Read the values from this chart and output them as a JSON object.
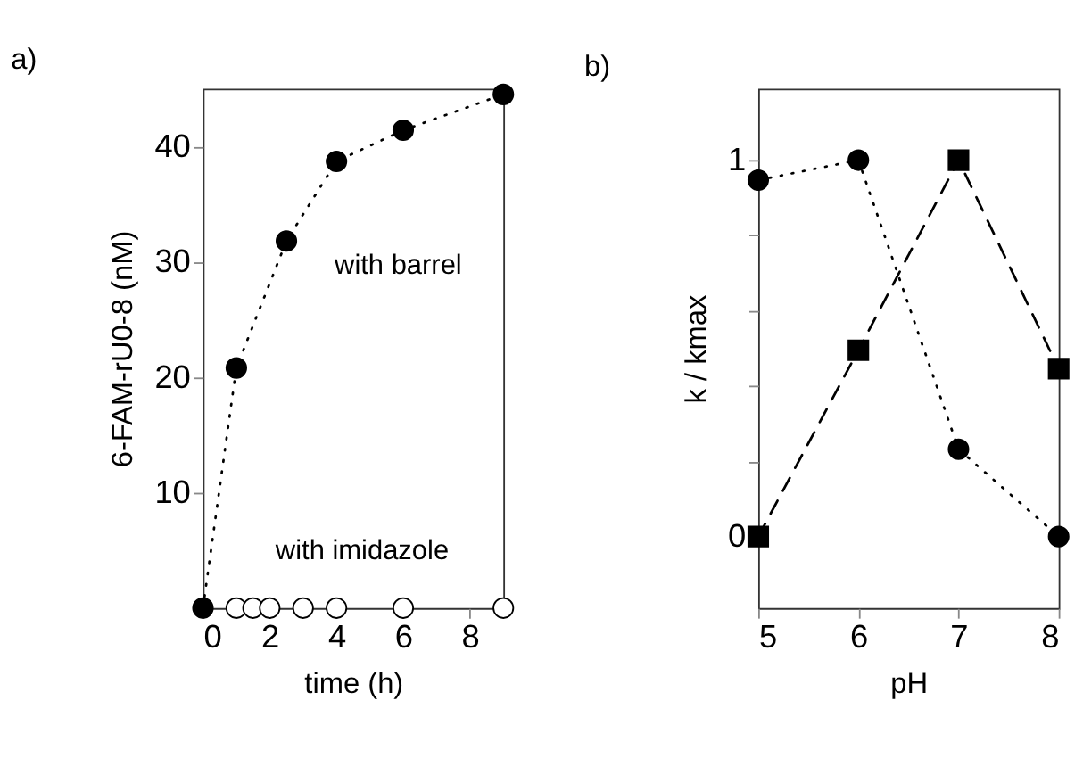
{
  "chart_data": [
    {
      "type": "line",
      "title": "a)",
      "xlabel": "time (h)",
      "ylabel": "6-FAM-rU0-8 (nM)",
      "xlim": [
        0,
        9
      ],
      "ylim": [
        0,
        45
      ],
      "xticks": [
        0,
        2,
        4,
        6,
        8
      ],
      "yticks": [
        10,
        20,
        30,
        40
      ],
      "grid": false,
      "series": [
        {
          "color": "#000000",
          "marker": "circle",
          "line_style": "dotted",
          "x": [
            0,
            1,
            2.5,
            4,
            6,
            9
          ],
          "values": [
            0,
            20.8,
            31.8,
            38.7,
            41.4,
            44.5
          ]
        },
        {
          "type": "scatter",
          "color": "#ffffff",
          "marker": "circle",
          "x": [
            1,
            1.5,
            2,
            3,
            4,
            6,
            9
          ],
          "values": [
            0,
            0,
            0,
            0,
            0,
            0,
            0
          ]
        }
      ],
      "annotations": [
        "with barrel",
        "with imidazole"
      ]
    },
    {
      "type": "line",
      "title": "b)",
      "xlabel": "pH",
      "ylabel": "k / kmax",
      "xlim": [
        5,
        8
      ],
      "ylim": [
        -0.19,
        1.19
      ],
      "xticks": [
        5,
        6,
        7,
        8
      ],
      "yticks": [
        0,
        {
          "value": 0.2,
          "label": null
        },
        {
          "value": 0.4,
          "label": null
        },
        {
          "value": 0.6,
          "label": null
        },
        {
          "value": 0.8,
          "label": null
        },
        1
      ],
      "grid": false,
      "series": [
        {
          "color": "#000000",
          "marker": "circle",
          "line_style": "dotted",
          "x": [
            5,
            6,
            7,
            8
          ],
          "values": [
            0.947,
            1.0,
            0.232,
            0
          ]
        },
        {
          "color": "#000000",
          "marker": "square",
          "line_style": "dashed",
          "x": [
            5,
            6,
            7,
            8
          ],
          "values": [
            0,
            0.495,
            1.0,
            0.446
          ]
        }
      ]
    }
  ]
}
